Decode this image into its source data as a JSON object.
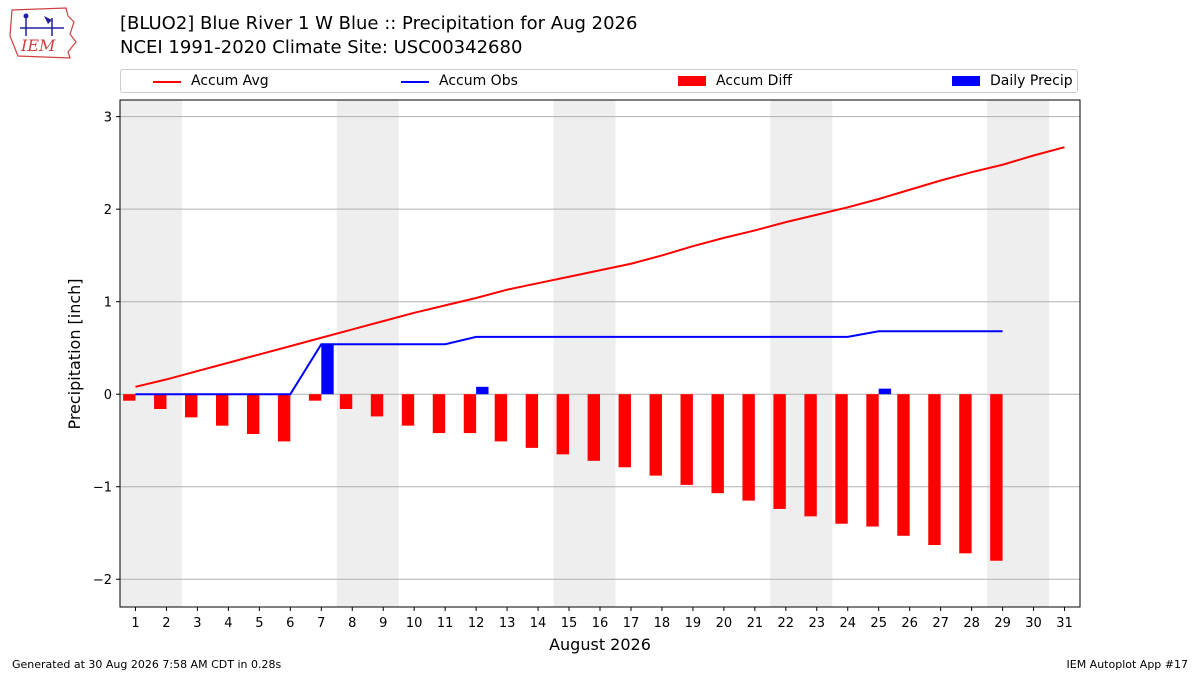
{
  "header": {
    "title_line1": "[BLUO2] Blue River 1 W Blue :: Precipitation for Aug 2026",
    "title_line2": "NCEI 1991-2020 Climate Site: USC00342680",
    "logo_text": "IEM"
  },
  "legend": {
    "items": [
      {
        "label": "Accum Avg",
        "color": "#ff0000",
        "kind": "line"
      },
      {
        "label": "Accum Obs",
        "color": "#0000ff",
        "kind": "line"
      },
      {
        "label": "Accum Diff",
        "color": "#ff0000",
        "kind": "bar"
      },
      {
        "label": "Daily Precip",
        "color": "#0000ff",
        "kind": "bar"
      }
    ]
  },
  "footer": {
    "left": "Generated at 30 Aug 2026 7:58 AM CDT in 0.28s",
    "right": "IEM Autoplot App #17"
  },
  "chart_data": {
    "type": "bar",
    "xlabel": "August 2026",
    "ylabel": "Precipitation [inch]",
    "ylim": [
      -2.3,
      3.18
    ],
    "xlim": [
      0.5,
      31.5
    ],
    "yticks": [
      -2,
      -1,
      0,
      1,
      2,
      3
    ],
    "ytick_labels": [
      "−2",
      "−1",
      "0",
      "1",
      "2",
      "3"
    ],
    "xticks": [
      1,
      2,
      3,
      4,
      5,
      6,
      7,
      8,
      9,
      10,
      11,
      12,
      13,
      14,
      15,
      16,
      17,
      18,
      19,
      20,
      21,
      22,
      23,
      24,
      25,
      26,
      27,
      28,
      29,
      30,
      31
    ],
    "grid": "horizontal",
    "weekend_shading": [
      [
        0.5,
        2.5
      ],
      [
        7.5,
        9.5
      ],
      [
        14.5,
        16.5
      ],
      [
        21.5,
        23.5
      ],
      [
        28.5,
        30.5
      ]
    ],
    "shade_color": "#eeeeee",
    "series": [
      {
        "name": "Accum Avg",
        "kind": "line",
        "color": "#ff0000",
        "x": [
          1,
          2,
          3,
          4,
          5,
          6,
          7,
          8,
          9,
          10,
          11,
          12,
          13,
          14,
          15,
          16,
          17,
          18,
          19,
          20,
          21,
          22,
          23,
          24,
          25,
          26,
          27,
          28,
          29,
          30,
          31
        ],
        "values": [
          0.08,
          0.16,
          0.25,
          0.34,
          0.43,
          0.52,
          0.61,
          0.7,
          0.79,
          0.88,
          0.96,
          1.04,
          1.13,
          1.2,
          1.27,
          1.34,
          1.41,
          1.5,
          1.6,
          1.69,
          1.77,
          1.86,
          1.94,
          2.02,
          2.11,
          2.21,
          2.31,
          2.4,
          2.48,
          2.58,
          2.67
        ]
      },
      {
        "name": "Accum Obs",
        "kind": "line",
        "color": "#0000ff",
        "x": [
          1,
          2,
          3,
          4,
          5,
          6,
          7,
          8,
          9,
          10,
          11,
          12,
          13,
          14,
          15,
          16,
          17,
          18,
          19,
          20,
          21,
          22,
          23,
          24,
          25,
          26,
          27,
          28,
          29
        ],
        "values": [
          0,
          0,
          0,
          0,
          0,
          0,
          0.54,
          0.54,
          0.54,
          0.54,
          0.54,
          0.62,
          0.62,
          0.62,
          0.62,
          0.62,
          0.62,
          0.62,
          0.62,
          0.62,
          0.62,
          0.62,
          0.62,
          0.62,
          0.68,
          0.68,
          0.68,
          0.68,
          0.68
        ]
      },
      {
        "name": "Accum Diff",
        "kind": "bar",
        "color": "#ff0000",
        "x": [
          1,
          2,
          3,
          4,
          5,
          6,
          7,
          8,
          9,
          10,
          11,
          12,
          13,
          14,
          15,
          16,
          17,
          18,
          19,
          20,
          21,
          22,
          23,
          24,
          25,
          26,
          27,
          28,
          29
        ],
        "values": [
          -0.07,
          -0.16,
          -0.25,
          -0.34,
          -0.43,
          -0.51,
          -0.07,
          -0.16,
          -0.24,
          -0.34,
          -0.42,
          -0.42,
          -0.51,
          -0.58,
          -0.65,
          -0.72,
          -0.79,
          -0.88,
          -0.98,
          -1.07,
          -1.15,
          -1.24,
          -1.32,
          -1.4,
          -1.43,
          -1.53,
          -1.63,
          -1.72,
          -1.8
        ]
      },
      {
        "name": "Daily Precip",
        "kind": "bar",
        "color": "#0000ff",
        "x": [
          7,
          12,
          25
        ],
        "values": [
          0.54,
          0.08,
          0.06
        ]
      }
    ]
  }
}
